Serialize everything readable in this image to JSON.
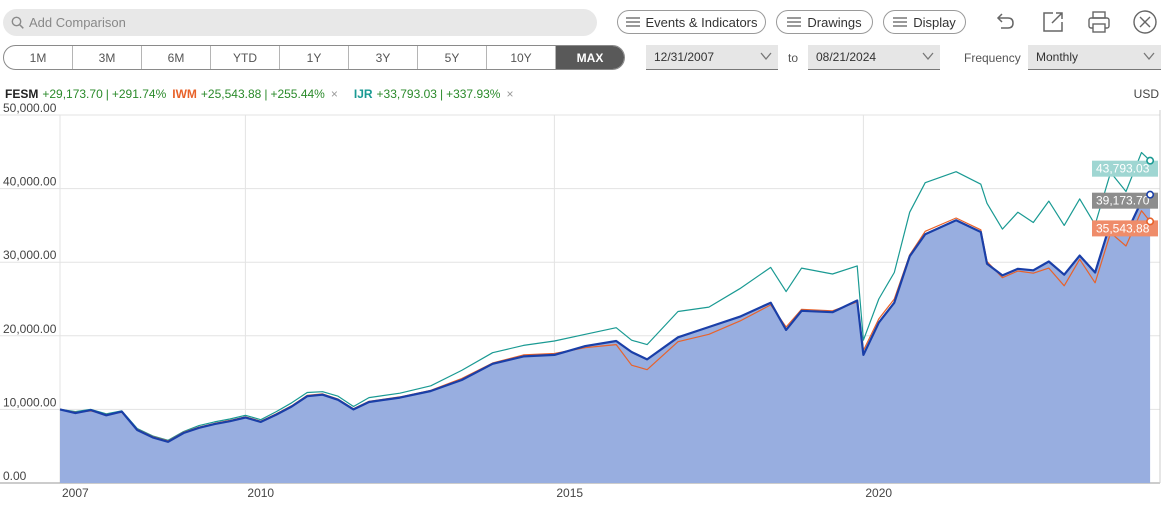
{
  "toolbar": {
    "search_placeholder": "Add Comparison",
    "events_label": "Events & Indicators",
    "drawings_label": "Drawings",
    "display_label": "Display"
  },
  "ranges": [
    "1M",
    "3M",
    "6M",
    "YTD",
    "1Y",
    "3Y",
    "5Y",
    "10Y",
    "MAX"
  ],
  "active_range": "MAX",
  "dates": {
    "from": "12/31/2007",
    "to_label": "to",
    "to": "08/21/2024"
  },
  "frequency": {
    "label": "Frequency",
    "value": "Monthly"
  },
  "legend": {
    "fesm": {
      "symbol": "FESM",
      "value": "+29,173.70",
      "pct": "+291.74%"
    },
    "iwm": {
      "symbol": "IWM",
      "value": "+25,543.88",
      "pct": "+255.44%"
    },
    "ijr": {
      "symbol": "IJR",
      "value": "+33,793.03",
      "pct": "+337.93%"
    },
    "close_glyph": "×"
  },
  "currency": "USD",
  "colors": {
    "fesm": "#1a3fa8",
    "fesm_fill": "#98aee0",
    "iwm": "#e8622a",
    "ijr": "#1a9a93",
    "positive": "#2a8a2a"
  },
  "chart_data": {
    "type": "area",
    "ylim": [
      0,
      50000
    ],
    "y_ticks": [
      0,
      10000,
      20000,
      30000,
      40000,
      50000
    ],
    "y_tick_labels": [
      "0.00",
      "10,000.00",
      "20,000.00",
      "30,000.00",
      "40,000.00",
      "50,000.00"
    ],
    "x_range": [
      2007.0,
      2024.8
    ],
    "x_ticks": [
      2007,
      2010,
      2015,
      2020
    ],
    "x_tick_labels": [
      "2007",
      "2010",
      "2015",
      "2020"
    ],
    "end_labels": {
      "ijr": "43,793.03",
      "fesm": "39,173.70",
      "iwm": "35,543.88"
    },
    "series": [
      {
        "name": "FESM",
        "x": [
          2007.0,
          2007.25,
          2007.5,
          2007.75,
          2008.0,
          2008.25,
          2008.5,
          2008.75,
          2009.0,
          2009.25,
          2009.5,
          2009.75,
          2010.0,
          2010.25,
          2010.5,
          2010.75,
          2011.0,
          2011.25,
          2011.5,
          2011.75,
          2012.0,
          2012.5,
          2013.0,
          2013.5,
          2014.0,
          2014.5,
          2015.0,
          2015.5,
          2016.0,
          2016.25,
          2016.5,
          2017.0,
          2017.5,
          2018.0,
          2018.5,
          2018.75,
          2019.0,
          2019.5,
          2019.9,
          2020.0,
          2020.25,
          2020.5,
          2020.75,
          2021.0,
          2021.5,
          2021.9,
          2022.0,
          2022.25,
          2022.5,
          2022.75,
          2023.0,
          2023.25,
          2023.5,
          2023.75,
          2024.0,
          2024.25,
          2024.5,
          2024.64
        ],
        "values": [
          10000,
          9500,
          9900,
          9200,
          9700,
          7200,
          6200,
          5600,
          6800,
          7500,
          8000,
          8400,
          8900,
          8300,
          9300,
          10400,
          11800,
          12000,
          11300,
          10000,
          11000,
          11600,
          12500,
          14000,
          16200,
          17200,
          17400,
          18600,
          19300,
          17800,
          16800,
          19800,
          21200,
          22600,
          24500,
          20800,
          23400,
          23200,
          24800,
          17400,
          21800,
          24500,
          30800,
          33800,
          35700,
          34100,
          29800,
          28200,
          29100,
          28900,
          30100,
          28300,
          30900,
          28600,
          35400,
          33800,
          38300,
          39174
        ]
      },
      {
        "name": "IWM",
        "x": [
          2007.0,
          2007.25,
          2007.5,
          2007.75,
          2008.0,
          2008.25,
          2008.5,
          2008.75,
          2009.0,
          2009.25,
          2009.5,
          2009.75,
          2010.0,
          2010.25,
          2010.5,
          2010.75,
          2011.0,
          2011.25,
          2011.5,
          2011.75,
          2012.0,
          2012.5,
          2013.0,
          2013.5,
          2014.0,
          2014.5,
          2015.0,
          2015.5,
          2016.0,
          2016.25,
          2016.5,
          2017.0,
          2017.5,
          2018.0,
          2018.5,
          2018.75,
          2019.0,
          2019.5,
          2019.9,
          2020.0,
          2020.25,
          2020.5,
          2020.75,
          2021.0,
          2021.5,
          2021.9,
          2022.0,
          2022.25,
          2022.5,
          2022.75,
          2023.0,
          2023.25,
          2023.5,
          2023.75,
          2024.0,
          2024.25,
          2024.5,
          2024.64
        ],
        "values": [
          10000,
          9600,
          9800,
          9300,
          9600,
          7300,
          6300,
          5700,
          6900,
          7600,
          8100,
          8500,
          9000,
          8400,
          9400,
          10500,
          11900,
          12100,
          11400,
          10100,
          11100,
          11700,
          12600,
          14200,
          16300,
          17400,
          17600,
          18400,
          18800,
          16000,
          15400,
          19200,
          20200,
          22000,
          24200,
          21200,
          23600,
          23400,
          24600,
          18000,
          22300,
          25000,
          31000,
          34200,
          36000,
          34400,
          30100,
          27900,
          28800,
          28500,
          29200,
          26800,
          30400,
          27200,
          34000,
          32200,
          37000,
          35544
        ]
      },
      {
        "name": "IJR",
        "x": [
          2007.0,
          2007.25,
          2007.5,
          2007.75,
          2008.0,
          2008.25,
          2008.5,
          2008.75,
          2009.0,
          2009.25,
          2009.5,
          2009.75,
          2010.0,
          2010.25,
          2010.5,
          2010.75,
          2011.0,
          2011.25,
          2011.5,
          2011.75,
          2012.0,
          2012.5,
          2013.0,
          2013.5,
          2014.0,
          2014.5,
          2015.0,
          2015.5,
          2016.0,
          2016.25,
          2016.5,
          2017.0,
          2017.5,
          2018.0,
          2018.5,
          2018.75,
          2019.0,
          2019.5,
          2019.9,
          2020.0,
          2020.25,
          2020.5,
          2020.75,
          2021.0,
          2021.5,
          2021.9,
          2022.0,
          2022.25,
          2022.5,
          2022.75,
          2023.0,
          2023.25,
          2023.5,
          2023.75,
          2024.0,
          2024.25,
          2024.5,
          2024.64
        ],
        "values": [
          10000,
          9700,
          10000,
          9400,
          9800,
          7400,
          6400,
          5800,
          7000,
          7800,
          8300,
          8700,
          9200,
          8600,
          9700,
          10900,
          12300,
          12400,
          11800,
          10400,
          11600,
          12200,
          13200,
          15300,
          17700,
          18700,
          19300,
          20200,
          21100,
          19400,
          18800,
          23300,
          23900,
          26400,
          29300,
          26000,
          29200,
          28400,
          29500,
          19400,
          25000,
          28600,
          36800,
          40800,
          42300,
          40600,
          38000,
          34500,
          36800,
          35400,
          38300,
          35000,
          38600,
          35100,
          42200,
          39600,
          44900,
          43793
        ]
      }
    ]
  }
}
